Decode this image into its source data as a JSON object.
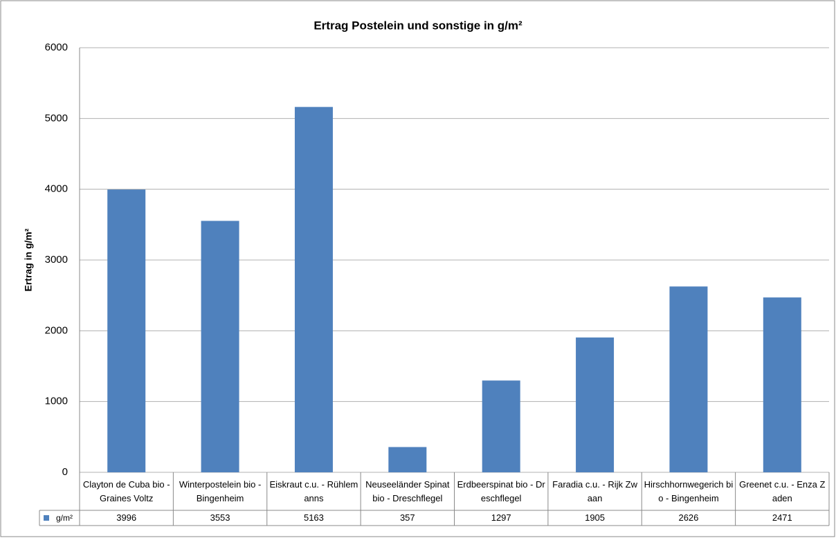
{
  "chart_data": {
    "type": "bar",
    "title": "Ertrag Postelein und sonstige in g/m²",
    "y_label": "Ertrag in g/m²",
    "categories": [
      "Clayton de Cuba bio - Graines Voltz",
      "Winterpostelein bio - Bingenheim",
      "Eiskraut c.u. - Rühlemanns",
      "Neuseeländer Spinat bio - Dreschflegel",
      "Erdbeerspinat bio - Dreschflegel",
      "Faradia c.u. - Rijk Zwaan",
      "Hirschhornwegerich bio - Bingenheim",
      "Greenet c.u. - Enza Zaden"
    ],
    "series": [
      {
        "name": "g/m²",
        "color": "#4f81bd",
        "values": [
          3996,
          3553,
          5163,
          357,
          1297,
          1905,
          2626,
          2471
        ]
      }
    ],
    "ylim": [
      0,
      6000
    ],
    "yticks": [
      0,
      1000,
      2000,
      3000,
      4000,
      5000,
      6000
    ],
    "grid": true,
    "data_table": true
  }
}
